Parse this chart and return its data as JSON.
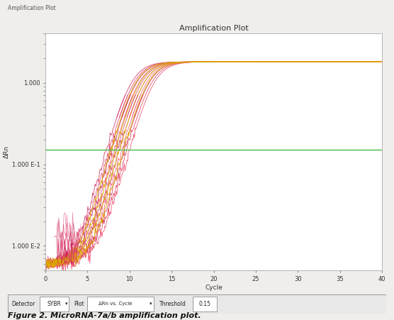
{
  "title": "Amplification Plot",
  "corner_label": "Amplification Plot",
  "xlabel": "Cycle",
  "ylabel": "ΔRn",
  "xlim": [
    0,
    40
  ],
  "threshold": 0.15,
  "threshold_color": "#44bb44",
  "x_ticks": [
    0,
    5,
    10,
    15,
    20,
    25,
    30,
    35,
    40
  ],
  "background_color": "#f0eeeb",
  "plot_bg": "#ffffff",
  "figure_caption": "Figure 2. MicroRNA-7a/b amplification plot.",
  "plateau": 1.8,
  "cts_main": [
    10.0,
    10.3,
    10.6,
    10.9,
    11.2,
    11.5,
    11.8,
    12.1,
    12.4,
    12.7
  ],
  "cts_yellow": [
    10.5,
    11.0,
    11.5,
    12.0
  ],
  "colors_main": [
    "#cc2255",
    "#dd3366",
    "#bb1144",
    "#ee4477",
    "#cc3355",
    "#dd4466",
    "#ee5577",
    "#cc2244",
    "#dd3355",
    "#ee4466"
  ],
  "color_yellow": "#ddaa00",
  "slope": 0.9,
  "baseline": 0.006,
  "title_fontsize": 8,
  "axis_fontsize": 6.5,
  "tick_fontsize": 6
}
